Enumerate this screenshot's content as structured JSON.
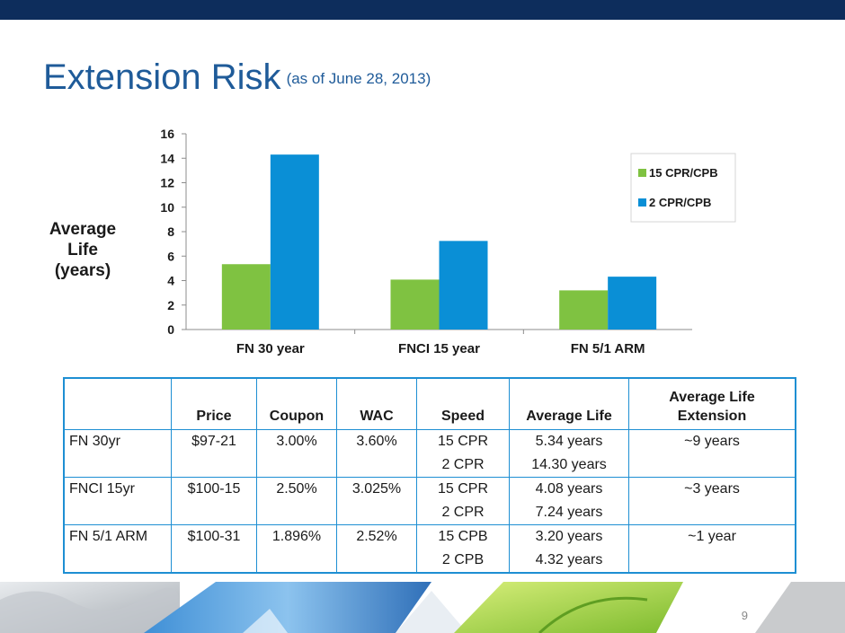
{
  "title": "Extension Risk",
  "subtitle": "(as of June 28, 2013)",
  "page_number": "9",
  "colors": {
    "series1": "#7fc241",
    "series2": "#0a8fd6",
    "brand": "#0d2d5c",
    "title": "#1f5b99",
    "table_border": "#1e8fd3"
  },
  "chart_data": {
    "type": "bar",
    "ylabel_lines": [
      "Average",
      "Life",
      "(years)"
    ],
    "categories": [
      "FN 30 year",
      "FNCI 15 year",
      "FN 5/1 ARM"
    ],
    "series": [
      {
        "name": "15 CPR/CPB",
        "values": [
          5.34,
          4.08,
          3.2
        ]
      },
      {
        "name": "2 CPR/CPB",
        "values": [
          14.3,
          7.24,
          4.32
        ]
      }
    ],
    "ylim": [
      0,
      16
    ],
    "yticks": [
      "0",
      "2",
      "4",
      "6",
      "8",
      "10",
      "12",
      "14",
      "16"
    ],
    "grid": false,
    "legend": "right"
  },
  "table": {
    "headers": [
      "",
      "Price",
      "Coupon",
      "WAC",
      "Speed",
      "Average Life",
      "Average Life Extension"
    ],
    "rows": [
      {
        "name": "FN 30yr",
        "price": "$97-21",
        "coupon": "3.00%",
        "wac": "3.60%",
        "speed": [
          "15 CPR",
          "2 CPR"
        ],
        "avg_life": [
          "5.34 years",
          "14.30 years"
        ],
        "extension": "~9 years"
      },
      {
        "name": "FNCI 15yr",
        "price": "$100-15",
        "coupon": "2.50%",
        "wac": "3.025%",
        "speed": [
          "15 CPR",
          "2 CPR"
        ],
        "avg_life": [
          "4.08 years",
          "7.24 years"
        ],
        "extension": "~3 years"
      },
      {
        "name": "FN 5/1 ARM",
        "price": "$100-31",
        "coupon": "1.896%",
        "wac": "2.52%",
        "speed": [
          "15 CPB",
          "2 CPB"
        ],
        "avg_life": [
          "3.20 years",
          "4.32 years"
        ],
        "extension": "~1 year"
      }
    ]
  }
}
